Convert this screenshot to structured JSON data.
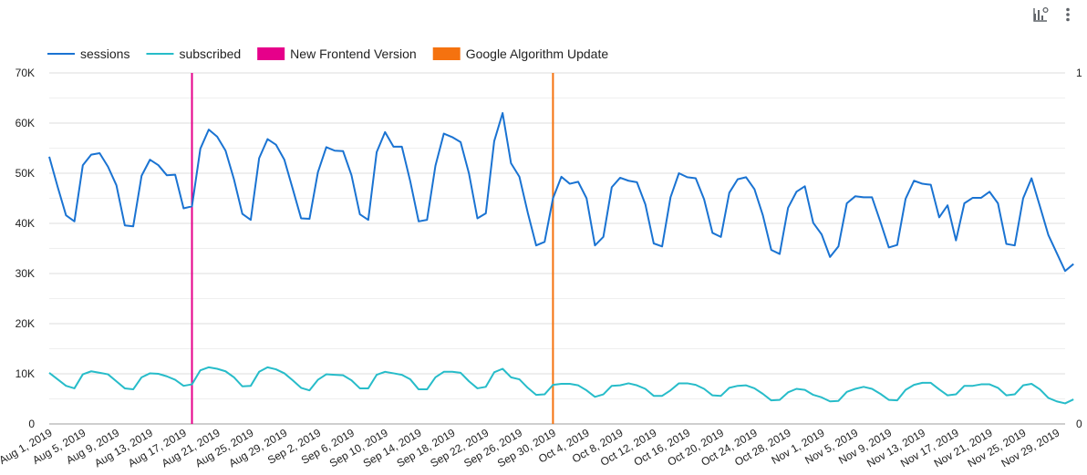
{
  "colors": {
    "sessions": "#1a73d2",
    "subscribed": "#27bcc9",
    "frontend": "#e6008a",
    "google": "#f5720f",
    "grid": "#dcdcdc",
    "text": "#222222",
    "icon": "#5f6368"
  },
  "toolbar": {
    "icons": [
      "chart-settings-icon",
      "more-vert-icon"
    ]
  },
  "legend": [
    {
      "label": "sessions",
      "kind": "line",
      "color": "#1a73d2"
    },
    {
      "label": "subscribed",
      "kind": "line",
      "color": "#27bcc9"
    },
    {
      "label": "New Frontend Version",
      "kind": "box",
      "color": "#e6008a"
    },
    {
      "label": "Google Algorithm Update",
      "kind": "box",
      "color": "#f5720f"
    }
  ],
  "chart_data": {
    "type": "line",
    "x_start": "2019-08-01",
    "x_end": "2019-11-30",
    "y_left": {
      "ticks": [
        "0",
        "10K",
        "20K",
        "30K",
        "40K",
        "50K",
        "60K",
        "70K"
      ],
      "range": [
        0,
        70000
      ]
    },
    "y_right": {
      "ticks": [
        "0",
        "1"
      ],
      "range": [
        0,
        1
      ]
    },
    "grid": true,
    "legend_position": "top-left",
    "x_tick_labels": [
      "Aug 1, 2019",
      "Aug 5, 2019",
      "Aug 9, 2019",
      "Aug 13, 2019",
      "Aug 17, 2019",
      "Aug 21, 2019",
      "Aug 25, 2019",
      "Aug 29, 2019",
      "Sep 2, 2019",
      "Sep 6, 2019",
      "Sep 10, 2019",
      "Sep 14, 2019",
      "Sep 18, 2019",
      "Sep 22, 2019",
      "Sep 26, 2019",
      "Sep 30, 2019",
      "Oct 4, 2019",
      "Oct 8, 2019",
      "Oct 12, 2019",
      "Oct 16, 2019",
      "Oct 20, 2019",
      "Oct 24, 2019",
      "Oct 28, 2019",
      "Nov 1, 2019",
      "Nov 5, 2019",
      "Nov 9, 2019",
      "Nov 13, 2019",
      "Nov 17, 2019",
      "Nov 21, 2019",
      "Nov 25, 2019",
      "Nov 29, 2019"
    ],
    "series": [
      {
        "name": "sessions",
        "axis": "left",
        "values": [
          53300,
          47300,
          41600,
          40400,
          51600,
          53700,
          54000,
          51300,
          47600,
          39600,
          39400,
          49500,
          52700,
          51600,
          49600,
          49700,
          43000,
          43400,
          54900,
          58700,
          57300,
          54500,
          48800,
          41900,
          40700,
          53000,
          56800,
          55700,
          52700,
          46900,
          41000,
          40900,
          50200,
          55200,
          54500,
          54400,
          49600,
          41800,
          40700,
          54200,
          58200,
          55300,
          55300,
          48400,
          40400,
          40700,
          51500,
          57900,
          57200,
          56200,
          49900,
          41000,
          42000,
          56400,
          62000,
          52000,
          49300,
          42100,
          35600,
          36300,
          45000,
          49300,
          47900,
          48300,
          45000,
          35600,
          37300,
          47200,
          49100,
          48500,
          48200,
          43800,
          36000,
          35400,
          45200,
          50000,
          49200,
          49000,
          44800,
          38100,
          37300,
          46100,
          48800,
          49200,
          46800,
          41600,
          34700,
          33900,
          43100,
          46300,
          47400,
          40100,
          37800,
          33300,
          35400,
          44000,
          45400,
          45200,
          45200,
          40300,
          35200,
          35700,
          44900,
          48500,
          47900,
          47700,
          41200,
          43600,
          36600,
          44000,
          45100,
          45100,
          46300,
          44000,
          35900,
          35600,
          45000,
          49000,
          43400,
          37700,
          34100,
          30500,
          31900
        ]
      },
      {
        "name": "subscribed",
        "axis": "left",
        "values": [
          10200,
          8900,
          7600,
          7100,
          9900,
          10500,
          10200,
          9900,
          8500,
          7100,
          6900,
          9300,
          10100,
          10000,
          9500,
          8800,
          7600,
          7900,
          10700,
          11300,
          11000,
          10500,
          9300,
          7500,
          7600,
          10400,
          11300,
          10900,
          10100,
          8700,
          7200,
          6700,
          8800,
          9900,
          9800,
          9700,
          8700,
          7100,
          7100,
          9800,
          10400,
          10100,
          9800,
          8900,
          6900,
          6900,
          9300,
          10400,
          10400,
          10200,
          8500,
          7100,
          7400,
          10300,
          11000,
          9300,
          8900,
          7200,
          5800,
          5900,
          7800,
          8000,
          8000,
          7700,
          6700,
          5400,
          5900,
          7600,
          7700,
          8100,
          7700,
          7000,
          5600,
          5600,
          6700,
          8100,
          8100,
          7800,
          7000,
          5700,
          5600,
          7200,
          7600,
          7700,
          7100,
          6000,
          4700,
          4800,
          6300,
          7000,
          6800,
          5800,
          5300,
          4500,
          4600,
          6400,
          7000,
          7400,
          7000,
          6000,
          4800,
          4700,
          6800,
          7800,
          8200,
          8200,
          6900,
          5700,
          5900,
          7600,
          7600,
          7900,
          7900,
          7200,
          5700,
          5900,
          7700,
          8000,
          6900,
          5200,
          4500,
          4100,
          4900
        ]
      }
    ],
    "events": [
      {
        "name": "New Frontend Version",
        "date": "2019-08-18",
        "color": "#e6008a"
      },
      {
        "name": "Google Algorithm Update",
        "date": "2019-09-30",
        "color": "#f5720f"
      }
    ]
  }
}
